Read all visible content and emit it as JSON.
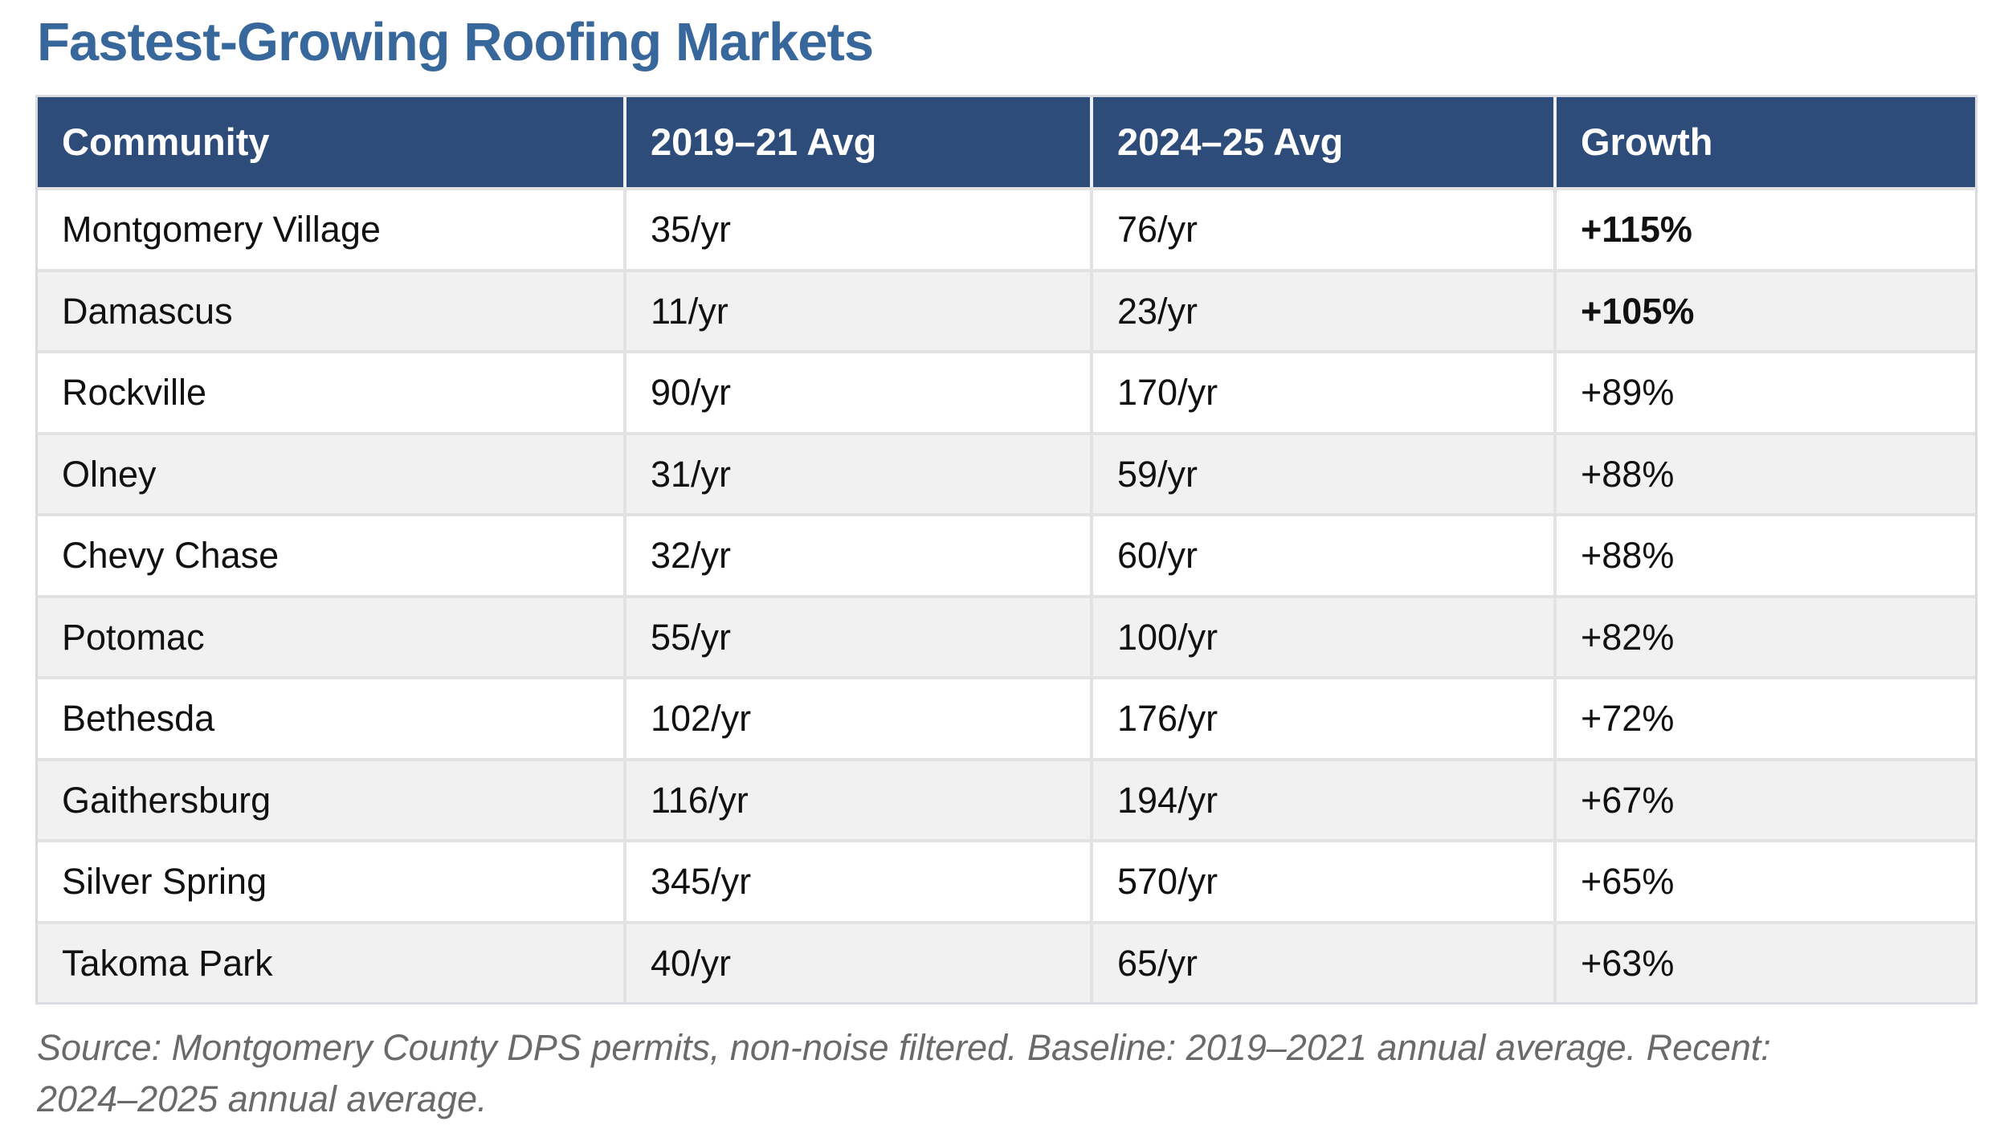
{
  "title": "Fastest-Growing Roofing Markets",
  "chart_data": {
    "type": "table",
    "title": "Fastest-Growing Roofing Markets",
    "columns": [
      "Community",
      "2019–21 Avg",
      "2024–25 Avg",
      "Growth"
    ],
    "rows": [
      {
        "community": "Montgomery Village",
        "baseline": "35/yr",
        "recent": "76/yr",
        "growth": "+115%"
      },
      {
        "community": "Damascus",
        "baseline": "11/yr",
        "recent": "23/yr",
        "growth": "+105%"
      },
      {
        "community": "Rockville",
        "baseline": "90/yr",
        "recent": "170/yr",
        "growth": "+89%"
      },
      {
        "community": "Olney",
        "baseline": "31/yr",
        "recent": "59/yr",
        "growth": "+88%"
      },
      {
        "community": "Chevy Chase",
        "baseline": "32/yr",
        "recent": "60/yr",
        "growth": "+88%"
      },
      {
        "community": "Potomac",
        "baseline": "55/yr",
        "recent": "100/yr",
        "growth": "+82%"
      },
      {
        "community": "Bethesda",
        "baseline": "102/yr",
        "recent": "176/yr",
        "growth": "+72%"
      },
      {
        "community": "Gaithersburg",
        "baseline": "116/yr",
        "recent": "194/yr",
        "growth": "+67%"
      },
      {
        "community": "Silver Spring",
        "baseline": "345/yr",
        "recent": "570/yr",
        "growth": "+65%"
      },
      {
        "community": "Takoma Park",
        "baseline": "40/yr",
        "recent": "65/yr",
        "growth": "+63%"
      }
    ],
    "source_note": "Source: Montgomery County DPS permits, non-noise filtered. Baseline: 2019–2021 annual average. Recent: 2024–2025 annual average."
  },
  "footer": {
    "line1": "Source: Montgomery County DPS permits, non-noise filtered. Baseline: 2019–2021 annual average. Recent:",
    "line2": "2024–2025 annual average."
  },
  "colors": {
    "title_text": "#38689b",
    "header_bg": "#2e4c7a",
    "header_text": "#ffffff",
    "row_alt_bg": "#f1f1f1",
    "cell_border": "#e2e2e2",
    "outer_border": "#d8dbdf",
    "source_text": "#6a6a6a"
  }
}
